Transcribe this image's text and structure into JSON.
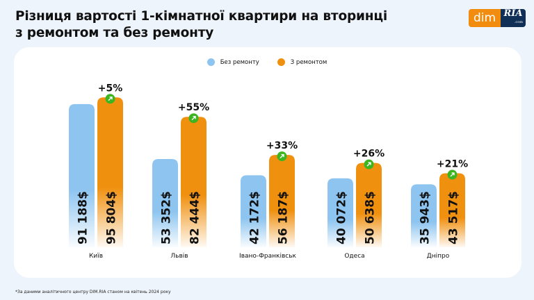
{
  "title_lines": [
    "Різниця вартості 1-кімнатної квартири на вторинці",
    "з ремонтом та без ремонту"
  ],
  "logo": {
    "left": "dim",
    "right": "RIA",
    "right_sub": ".com"
  },
  "footnote": "*За даними аналітичного центру DIM.RIA станом на квітень 2024 року",
  "colors": {
    "without": "#8ec5f0",
    "with": "#f0900f",
    "badge": "#3cb521"
  },
  "chart_data": {
    "type": "bar",
    "categories": [
      "Київ",
      "Львів",
      "Івано-Франківськ",
      "Одеса",
      "Дніпро"
    ],
    "series": [
      {
        "name": "Без ремонту",
        "values": [
          91188,
          53352,
          42172,
          40072,
          35943
        ],
        "labels": [
          "91 188$",
          "53 352$",
          "42 172$",
          "40 072$",
          "35 943$"
        ]
      },
      {
        "name": "З ремонтом",
        "values": [
          95804,
          82444,
          56187,
          50638,
          43517
        ],
        "labels": [
          "95 804$",
          "82 444$",
          "56 187$",
          "50 638$",
          "43 517$"
        ]
      }
    ],
    "annotations": [
      "+5%",
      "+55%",
      "+33%",
      "+26%",
      "+21%"
    ],
    "legend": "top-center",
    "grid": false
  }
}
